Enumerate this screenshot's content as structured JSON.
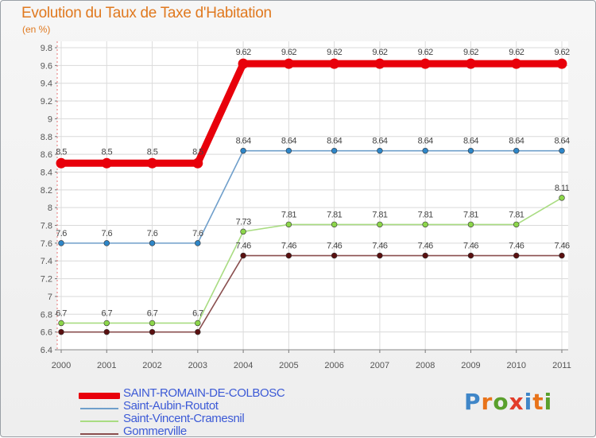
{
  "header": {
    "title": "Evolution du Taux de Taxe d'Habitation",
    "subtitle": "(en %)"
  },
  "brand": {
    "logo_letters": [
      "P",
      "r",
      "o",
      "x",
      "i",
      "t",
      "i"
    ],
    "logo_colors": [
      "#3f86c8",
      "#e8731a",
      "#5aa02c",
      "#e23d2a",
      "#3f86c8",
      "#e8731a",
      "#5aa02c"
    ]
  },
  "chart_data": {
    "type": "line",
    "title": "Evolution du Taux de Taxe d'Habitation",
    "ylabel": "(en %)",
    "xlabel": "",
    "x": [
      "2000",
      "2001",
      "2002",
      "2003",
      "2004",
      "2005",
      "2006",
      "2007",
      "2008",
      "2009",
      "2010",
      "2011"
    ],
    "ylim": [
      6.4,
      9.8
    ],
    "yticks": [
      6.4,
      6.6,
      6.8,
      7,
      7.2,
      7.4,
      7.6,
      7.8,
      8,
      8.2,
      8.4,
      8.6,
      8.8,
      9,
      9.2,
      9.4,
      9.6,
      9.8
    ],
    "ytick_labels": [
      "6.4",
      "6.6",
      "6.8",
      "7",
      "7.2",
      "7.4",
      "7.6",
      "7.8",
      "8",
      "8.2",
      "8.4",
      "8.6",
      "8.8",
      "9",
      "9.2",
      "9.4",
      "9.6",
      "9.8"
    ],
    "grid": true,
    "legend_position": "bottom-left",
    "series": [
      {
        "name": "SAINT-ROMAIN-DE-COLBOSC",
        "color": "#e8000b",
        "emphasis": "thick",
        "values": [
          8.5,
          8.5,
          8.5,
          8.5,
          9.62,
          9.62,
          9.62,
          9.62,
          9.62,
          9.62,
          9.62,
          9.62
        ],
        "labels": [
          "8.5",
          "8.5",
          "8.5",
          "8.5",
          "9.62",
          "9.62",
          "9.62",
          "9.62",
          "9.62",
          "9.62",
          "9.62",
          "9.62"
        ]
      },
      {
        "name": "Saint-Aubin-Routot",
        "color": "#6f9fcb",
        "marker": "#2e86c8",
        "values": [
          7.6,
          7.6,
          7.6,
          7.6,
          8.64,
          8.64,
          8.64,
          8.64,
          8.64,
          8.64,
          8.64,
          8.64
        ],
        "labels": [
          "7.6",
          "7.6",
          "7.6",
          "7.6",
          "8.64",
          "8.64",
          "8.64",
          "8.64",
          "8.64",
          "8.64",
          "8.64",
          "8.64"
        ]
      },
      {
        "name": "Saint-Vincent-Cramesnil",
        "color": "#a9dc82",
        "marker": "#8cd64a",
        "values": [
          6.7,
          6.7,
          6.7,
          6.7,
          7.73,
          7.81,
          7.81,
          7.81,
          7.81,
          7.81,
          7.81,
          8.11
        ],
        "labels": [
          "6.7",
          "6.7",
          "6.7",
          "6.7",
          "7.73",
          "7.81",
          "7.81",
          "7.81",
          "7.81",
          "7.81",
          "7.81",
          "8.11"
        ]
      },
      {
        "name": "Gommerville",
        "color": "#8a4f4f",
        "marker": "#5a1010",
        "values": [
          6.6,
          6.6,
          6.6,
          6.6,
          7.46,
          7.46,
          7.46,
          7.46,
          7.46,
          7.46,
          7.46,
          7.46
        ],
        "labels": [
          "",
          "",
          "",
          "",
          "7.46",
          "7.46",
          "7.46",
          "7.46",
          "7.46",
          "7.46",
          "7.46",
          "7.46"
        ]
      }
    ]
  }
}
